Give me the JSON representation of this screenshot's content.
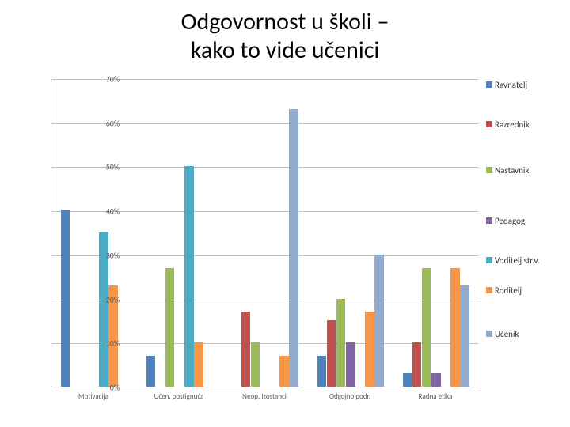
{
  "title_line1": "Odgovornost u školi –",
  "title_line2": "kako to vide učenici",
  "chart": {
    "type": "bar",
    "categories": [
      "Motivacija",
      "Učen. postignuća",
      "Neop. Izostanci",
      "Odgojno podr.",
      "Radna etika"
    ],
    "series": [
      {
        "name": "Ravnatelj",
        "color": "#4f81bd",
        "values": [
          40,
          7,
          0,
          7,
          3
        ]
      },
      {
        "name": "Razrednik",
        "color": "#c0504d",
        "values": [
          0,
          0,
          17,
          15,
          10
        ]
      },
      {
        "name": "Nastavnik",
        "color": "#9bbb59",
        "values": [
          0,
          27,
          10,
          20,
          27
        ]
      },
      {
        "name": "Pedagog",
        "color": "#8064a2",
        "values": [
          0,
          0,
          0,
          10,
          3
        ]
      },
      {
        "name": "Voditelj str.v.",
        "color": "#4bacc6",
        "values": [
          35,
          50,
          0,
          0,
          0
        ]
      },
      {
        "name": "Roditelj",
        "color": "#f79646",
        "values": [
          23,
          10,
          7,
          17,
          27
        ]
      },
      {
        "name": "Učenik",
        "color": "#93abcf",
        "values": [
          0,
          0,
          63,
          30,
          23
        ]
      }
    ],
    "ymin": 0,
    "ymax": 70,
    "ytick_step": 10,
    "ytick_suffix": "%",
    "background_color": "#ffffff",
    "grid_color": "#bfbfbf",
    "axis_label_color": "#595959",
    "title_fontsize": 30,
    "axis_fontsize": 10,
    "category_fontsize": 9,
    "legend_fontsize": 11,
    "bar_cluster_width_ratio": 0.78
  }
}
